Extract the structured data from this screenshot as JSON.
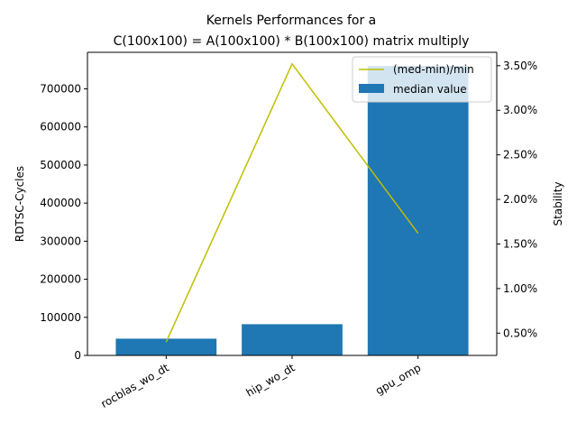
{
  "chart_data": {
    "type": "bar",
    "title_line1": "Kernels Performances for a",
    "title_line2": "C(100x100) = A(100x100) * B(100x100) matrix multiply",
    "categories": [
      "rocblas_wo_dt",
      "hip_wo_dt",
      "gpu_omp"
    ],
    "ylabel": "RDTSC-Cycles",
    "y2label": "Stability",
    "ylim": [
      0,
      796000
    ],
    "yticks": [
      0,
      100000,
      200000,
      300000,
      400000,
      500000,
      600000,
      700000
    ],
    "y2lim": [
      0.25,
      3.65
    ],
    "y2ticks": [
      0.5,
      1.0,
      1.5,
      2.0,
      2.5,
      3.0,
      3.5
    ],
    "y2tick_labels": [
      "0.50%",
      "1.00%",
      "1.50%",
      "2.00%",
      "2.50%",
      "3.00%",
      "3.50%"
    ],
    "series": [
      {
        "name": "median value",
        "type": "bar",
        "axis": "left",
        "color": "#1f77b4",
        "values": [
          44000,
          82000,
          760000
        ]
      },
      {
        "name": "(med-min)/min",
        "type": "line",
        "axis": "right",
        "color": "#bfbf00",
        "values": [
          0.4,
          3.52,
          1.62
        ]
      }
    ],
    "legend_position": "top-right",
    "grid": false
  }
}
